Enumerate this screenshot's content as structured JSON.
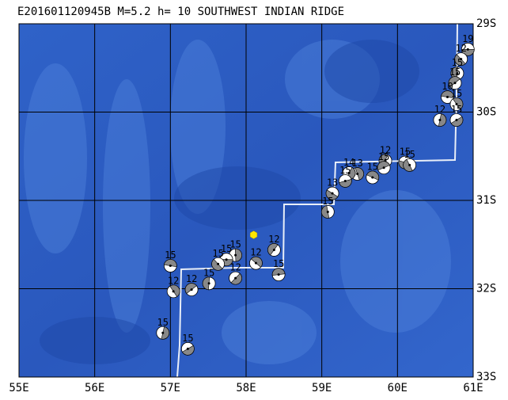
{
  "map": {
    "title": "E201601120945B M=5.2 h= 10 SOUTHWEST INDIAN RIDGE",
    "xlim": [
      55,
      61
    ],
    "ylim": [
      -29,
      -33
    ],
    "xticks": [
      {
        "value": 55,
        "label": "55E"
      },
      {
        "value": 56,
        "label": "56E"
      },
      {
        "value": 57,
        "label": "57E"
      },
      {
        "value": 58,
        "label": "58E"
      },
      {
        "value": 59,
        "label": "59E"
      },
      {
        "value": 60,
        "label": "60E"
      },
      {
        "value": 61,
        "label": "61E"
      }
    ],
    "yticks": [
      {
        "value": -29,
        "label": "29S"
      },
      {
        "value": -30,
        "label": "30S"
      },
      {
        "value": -31,
        "label": "31S"
      },
      {
        "value": -32,
        "label": "32S"
      },
      {
        "value": -33,
        "label": "33S"
      }
    ],
    "epicenter": {
      "lon": 58.1,
      "lat": -31.39,
      "color": "#ffe600"
    },
    "events": [
      {
        "label": "19",
        "lon": 60.93,
        "lat": -29.29
      },
      {
        "label": "12",
        "lon": 60.84,
        "lat": -29.4
      },
      {
        "label": "15",
        "lon": 60.79,
        "lat": -29.56
      },
      {
        "label": "15",
        "lon": 60.76,
        "lat": -29.67
      },
      {
        "label": "10",
        "lon": 60.66,
        "lat": -29.83
      },
      {
        "label": "15",
        "lon": 60.78,
        "lat": -29.91
      },
      {
        "label": "12",
        "lon": 60.56,
        "lat": -30.09
      },
      {
        "label": "15",
        "lon": 60.78,
        "lat": -30.09
      },
      {
        "label": "15",
        "lon": 60.1,
        "lat": -30.57
      },
      {
        "label": "15",
        "lon": 60.16,
        "lat": -30.6
      },
      {
        "label": "12",
        "lon": 59.84,
        "lat": -30.55
      },
      {
        "label": "15",
        "lon": 59.82,
        "lat": -30.63
      },
      {
        "label": "15",
        "lon": 59.67,
        "lat": -30.74
      },
      {
        "label": "13",
        "lon": 59.47,
        "lat": -30.7
      },
      {
        "label": "14",
        "lon": 59.36,
        "lat": -30.69
      },
      {
        "label": "15",
        "lon": 59.31,
        "lat": -30.78
      },
      {
        "label": "13",
        "lon": 59.14,
        "lat": -30.92
      },
      {
        "label": "15",
        "lon": 59.08,
        "lat": -31.13
      },
      {
        "label": "12",
        "lon": 58.37,
        "lat": -31.56
      },
      {
        "label": "15",
        "lon": 58.43,
        "lat": -31.84
      },
      {
        "label": "12",
        "lon": 58.13,
        "lat": -31.71
      },
      {
        "label": "15",
        "lon": 57.86,
        "lat": -31.62
      },
      {
        "label": "12",
        "lon": 57.86,
        "lat": -31.88
      },
      {
        "label": "15",
        "lon": 57.74,
        "lat": -31.67
      },
      {
        "label": "15",
        "lon": 57.63,
        "lat": -31.72
      },
      {
        "label": "15",
        "lon": 57.51,
        "lat": -31.94
      },
      {
        "label": "12",
        "lon": 57.28,
        "lat": -32.01
      },
      {
        "label": "15",
        "lon": 57.0,
        "lat": -31.74
      },
      {
        "label": "12",
        "lon": 57.04,
        "lat": -32.03
      },
      {
        "label": "15",
        "lon": 56.9,
        "lat": -32.5
      },
      {
        "label": "15",
        "lon": 57.23,
        "lat": -32.68
      }
    ]
  }
}
